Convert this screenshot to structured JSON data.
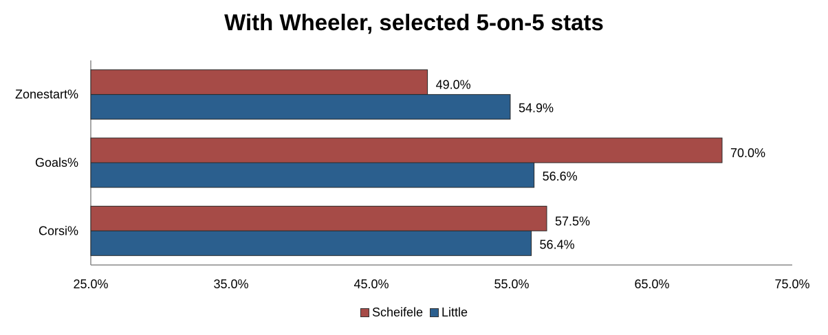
{
  "chart_data": {
    "type": "bar",
    "orientation": "horizontal",
    "title": "With Wheeler, selected 5-on-5 stats",
    "categories": [
      "Zonestart%",
      "Goals%",
      "Corsi%"
    ],
    "series": [
      {
        "name": "Scheifele",
        "color": "#A64B47",
        "values": [
          49.0,
          70.0,
          57.5
        ],
        "labels": [
          "49.0%",
          "70.0%",
          "57.5%"
        ]
      },
      {
        "name": "Little",
        "color": "#2B5F8E",
        "values": [
          54.9,
          56.6,
          56.4
        ],
        "labels": [
          "54.9%",
          "56.6%",
          "56.4%"
        ]
      }
    ],
    "xlim": [
      25,
      75
    ],
    "xticks": [
      "25.0%",
      "35.0%",
      "45.0%",
      "55.0%",
      "65.0%",
      "75.0%"
    ],
    "grid": false,
    "legend": "bottom"
  }
}
